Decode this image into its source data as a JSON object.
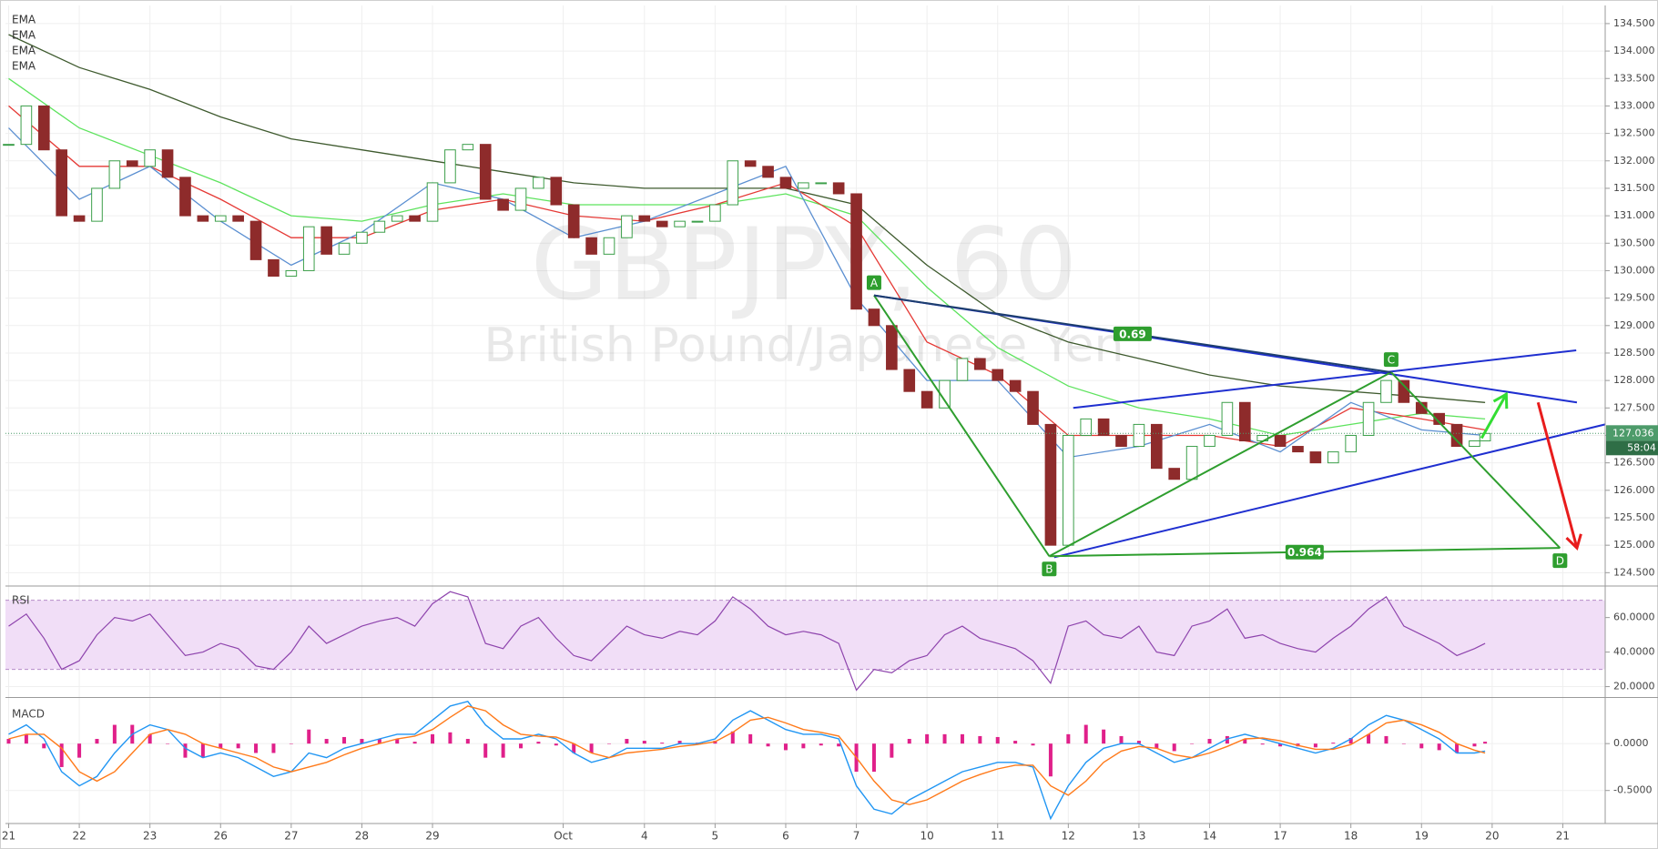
{
  "chart_data": {
    "type": "candlestick",
    "symbol_title": "GBPJPY, 60",
    "subtitle": "British Pound/Japanese Yen",
    "xlim": [
      -0.045,
      22.6
    ],
    "xticks": [
      {
        "value": 0,
        "label": "21"
      },
      {
        "value": 1,
        "label": "22"
      },
      {
        "value": 2,
        "label": "23"
      },
      {
        "value": 3,
        "label": "26"
      },
      {
        "value": 4,
        "label": "27"
      },
      {
        "value": 5,
        "label": "28"
      },
      {
        "value": 6,
        "label": "29"
      },
      {
        "value": 7.85,
        "label": "Oct"
      },
      {
        "value": 9,
        "label": "4"
      },
      {
        "value": 10,
        "label": "5"
      },
      {
        "value": 11,
        "label": "6"
      },
      {
        "value": 12,
        "label": "7"
      },
      {
        "value": 13,
        "label": "10"
      },
      {
        "value": 14,
        "label": "11"
      },
      {
        "value": 15,
        "label": "12"
      },
      {
        "value": 16,
        "label": "13"
      },
      {
        "value": 17,
        "label": "14"
      },
      {
        "value": 18,
        "label": "17"
      },
      {
        "value": 19,
        "label": "18"
      },
      {
        "value": 20,
        "label": "19"
      },
      {
        "value": 21,
        "label": "20"
      },
      {
        "value": 22,
        "label": "21"
      }
    ],
    "ylim": [
      124.29,
      134.83
    ],
    "yticks": [
      {
        "value": 124.5,
        "label": "124.500"
      },
      {
        "value": 125,
        "label": "125.000"
      },
      {
        "value": 125.5,
        "label": "125.500"
      },
      {
        "value": 126,
        "label": "126.000"
      },
      {
        "value": 126.5,
        "label": "126.500"
      },
      {
        "value": 127,
        "label": "127.000"
      },
      {
        "value": 127.5,
        "label": "127.500"
      },
      {
        "value": 128,
        "label": "128.000"
      },
      {
        "value": 128.5,
        "label": "128.500"
      },
      {
        "value": 129,
        "label": "129.000"
      },
      {
        "value": 129.5,
        "label": "129.500"
      },
      {
        "value": 130,
        "label": "130.000"
      },
      {
        "value": 130.5,
        "label": "130.500"
      },
      {
        "value": 131,
        "label": "131.000"
      },
      {
        "value": 131.5,
        "label": "131.500"
      },
      {
        "value": 132,
        "label": "132.000"
      },
      {
        "value": 132.5,
        "label": "132.500"
      },
      {
        "value": 133,
        "label": "133.000"
      },
      {
        "value": 133.5,
        "label": "133.500"
      },
      {
        "value": 134,
        "label": "134.000"
      },
      {
        "value": 134.5,
        "label": "134.500"
      }
    ],
    "grid": true,
    "up_color": "#3c9f4a",
    "down_color": "#8e2b2b",
    "x": [
      0,
      0.25,
      0.5,
      0.75,
      1,
      1.25,
      1.5,
      1.75,
      2,
      2.25,
      2.5,
      2.75,
      3,
      3.25,
      3.5,
      3.75,
      4,
      4.25,
      4.5,
      4.75,
      5,
      5.25,
      5.5,
      5.75,
      6,
      6.25,
      6.5,
      6.75,
      7,
      7.25,
      7.5,
      7.75,
      8,
      8.25,
      8.5,
      8.75,
      9,
      9.25,
      9.5,
      9.75,
      10,
      10.25,
      10.5,
      10.75,
      11,
      11.25,
      11.5,
      11.75,
      12,
      12.25,
      12.5,
      12.75,
      13,
      13.25,
      13.5,
      13.75,
      14,
      14.25,
      14.5,
      14.75,
      15,
      15.25,
      15.5,
      15.75,
      16,
      16.25,
      16.5,
      16.75,
      17,
      17.25,
      17.5,
      17.75,
      18,
      18.25,
      18.5,
      18.75,
      19,
      19.25,
      19.5,
      19.75,
      20,
      20.25,
      20.5,
      20.75,
      20.9
    ],
    "values": [
      132.3,
      133.0,
      132.2,
      131.0,
      130.9,
      131.5,
      132.0,
      131.9,
      132.2,
      131.7,
      131.0,
      130.9,
      131.0,
      130.9,
      130.2,
      129.9,
      130.0,
      130.8,
      130.3,
      130.5,
      130.7,
      130.9,
      131.0,
      130.9,
      131.6,
      132.2,
      132.3,
      131.3,
      131.1,
      131.5,
      131.7,
      131.2,
      130.6,
      130.3,
      130.6,
      131.0,
      130.9,
      130.8,
      130.9,
      130.9,
      131.2,
      132.0,
      131.9,
      131.7,
      131.5,
      131.6,
      131.6,
      131.4,
      129.3,
      129.0,
      128.2,
      127.8,
      127.5,
      128.0,
      128.4,
      128.2,
      128.0,
      127.8,
      127.2,
      125.0,
      127.0,
      127.3,
      127.0,
      126.8,
      127.2,
      126.4,
      126.2,
      126.8,
      127.0,
      127.6,
      126.9,
      127.0,
      126.8,
      126.7,
      126.5,
      126.7,
      127.0,
      127.6,
      128.0,
      127.6,
      127.4,
      127.2,
      126.8,
      126.9,
      127.036
    ],
    "price_color": "#4d9b6a",
    "countdown": "58:04",
    "ema_x": [
      0,
      1,
      2,
      3,
      4,
      5,
      6,
      7,
      8,
      9,
      10,
      11,
      12,
      13,
      14,
      15,
      16,
      17,
      18,
      19,
      20,
      20.9
    ],
    "ema": [
      {
        "name": "EMA",
        "color": "#5b8fd1",
        "values": [
          132.6,
          131.3,
          131.9,
          130.9,
          130.1,
          130.7,
          131.6,
          131.3,
          130.6,
          130.9,
          131.4,
          131.9,
          129.5,
          128.0,
          128.0,
          126.6,
          126.8,
          127.2,
          126.7,
          127.6,
          127.1,
          127.0
        ]
      },
      {
        "name": "EMA",
        "color": "#e53935",
        "values": [
          133.0,
          131.9,
          131.9,
          131.3,
          130.6,
          130.6,
          131.1,
          131.3,
          131.0,
          130.9,
          131.2,
          131.6,
          130.8,
          128.7,
          128.1,
          127.0,
          127.0,
          127.0,
          126.8,
          127.5,
          127.3,
          127.1
        ]
      },
      {
        "name": "EMA",
        "color": "#5de35d",
        "values": [
          133.5,
          132.6,
          132.1,
          131.6,
          131.0,
          130.9,
          131.2,
          131.4,
          131.2,
          131.2,
          131.2,
          131.4,
          131.0,
          129.7,
          128.6,
          127.9,
          127.5,
          127.3,
          127.0,
          127.2,
          127.4,
          127.3
        ]
      },
      {
        "name": "EMA",
        "color": "#3e5a2e",
        "values": [
          134.3,
          133.7,
          133.3,
          132.8,
          132.4,
          132.2,
          132.0,
          131.8,
          131.6,
          131.5,
          131.5,
          131.5,
          131.2,
          130.1,
          129.2,
          128.7,
          128.4,
          128.1,
          127.9,
          127.8,
          127.7,
          127.6
        ]
      }
    ],
    "pattern": {
      "color": "#2e9e2e",
      "points": [
        {
          "label": "A",
          "x": 12.25,
          "y": 129.55
        },
        {
          "label": "B",
          "x": 14.73,
          "y": 124.8
        },
        {
          "label": "C",
          "x": 19.57,
          "y": 128.15
        },
        {
          "label": "D",
          "x": 21.96,
          "y": 124.95
        }
      ],
      "ratios": [
        {
          "value": 0.69,
          "from": "A",
          "to": "C",
          "color": "#1d3e6e"
        },
        {
          "value": 0.964,
          "from": "B",
          "to": "D",
          "color": "#2e9e2e"
        }
      ]
    },
    "trend_lines": {
      "color": "#1f2fd0",
      "lines": [
        {
          "from": [
            12.25,
            129.55
          ],
          "to": [
            22.2,
            127.6
          ]
        },
        {
          "from": [
            15.07,
            127.5
          ],
          "to": [
            22.19,
            128.55
          ]
        },
        {
          "from": [
            14.8,
            124.78
          ],
          "to": [
            22.6,
            127.2
          ]
        }
      ]
    },
    "arrows": [
      {
        "color": "#33dd33",
        "from": [
          20.85,
          126.95
        ],
        "to": [
          21.2,
          127.75
        ]
      },
      {
        "color": "#e81c1c",
        "from": [
          21.65,
          127.6
        ],
        "to": [
          22.2,
          124.95
        ]
      }
    ],
    "rsi": {
      "title": "RSI",
      "color": "#8e44ad",
      "band": [
        30,
        70
      ],
      "band_color": "#f1def7",
      "ylim": [
        14.5,
        77.2
      ],
      "yticks": [
        {
          "value": 20,
          "label": "20.0000"
        },
        {
          "value": 40,
          "label": "40.0000"
        },
        {
          "value": 60,
          "label": "60.0000"
        }
      ],
      "values": [
        55,
        62,
        48,
        30,
        35,
        50,
        60,
        58,
        62,
        50,
        38,
        40,
        45,
        42,
        32,
        30,
        40,
        55,
        45,
        50,
        55,
        58,
        60,
        55,
        68,
        75,
        72,
        45,
        42,
        55,
        60,
        48,
        38,
        35,
        45,
        55,
        50,
        48,
        52,
        50,
        58,
        72,
        65,
        55,
        50,
        52,
        50,
        45,
        18,
        30,
        28,
        35,
        38,
        50,
        55,
        48,
        45,
        42,
        35,
        22,
        55,
        58,
        50,
        48,
        55,
        40,
        38,
        55,
        58,
        65,
        48,
        50,
        45,
        42,
        40,
        48,
        55,
        65,
        72,
        55,
        50,
        45,
        38,
        42,
        45
      ]
    },
    "macd": {
      "title": "MACD",
      "ylim": [
        -0.852,
        0.477
      ],
      "yticks": [
        {
          "value": 0,
          "label": "0.0000"
        },
        {
          "value": -0.5,
          "label": "-0.5000"
        }
      ],
      "macd_line": {
        "color": "#2196f3",
        "values": [
          0.1,
          0.2,
          0.05,
          -0.3,
          -0.45,
          -0.35,
          -0.1,
          0.1,
          0.2,
          0.15,
          -0.05,
          -0.15,
          -0.1,
          -0.15,
          -0.25,
          -0.35,
          -0.3,
          -0.1,
          -0.15,
          -0.05,
          0.0,
          0.05,
          0.1,
          0.1,
          0.25,
          0.4,
          0.45,
          0.2,
          0.05,
          0.05,
          0.1,
          0.05,
          -0.1,
          -0.2,
          -0.15,
          -0.05,
          -0.05,
          -0.05,
          0.0,
          0.0,
          0.05,
          0.25,
          0.35,
          0.25,
          0.15,
          0.1,
          0.1,
          0.05,
          -0.45,
          -0.7,
          -0.75,
          -0.6,
          -0.5,
          -0.4,
          -0.3,
          -0.25,
          -0.2,
          -0.2,
          -0.25,
          -0.8,
          -0.45,
          -0.2,
          -0.05,
          0.0,
          0.0,
          -0.1,
          -0.2,
          -0.15,
          -0.05,
          0.05,
          0.1,
          0.05,
          0.0,
          -0.05,
          -0.1,
          -0.05,
          0.05,
          0.2,
          0.3,
          0.25,
          0.15,
          0.05,
          -0.1,
          -0.1,
          -0.08
        ]
      },
      "signal": {
        "color": "#ff7a1a",
        "values": [
          0.05,
          0.1,
          0.1,
          -0.05,
          -0.3,
          -0.4,
          -0.3,
          -0.1,
          0.1,
          0.15,
          0.1,
          0.0,
          -0.05,
          -0.1,
          -0.15,
          -0.25,
          -0.3,
          -0.25,
          -0.2,
          -0.12,
          -0.05,
          0.0,
          0.05,
          0.08,
          0.15,
          0.28,
          0.4,
          0.35,
          0.2,
          0.1,
          0.08,
          0.07,
          0.0,
          -0.1,
          -0.15,
          -0.1,
          -0.08,
          -0.06,
          -0.03,
          -0.01,
          0.02,
          0.12,
          0.25,
          0.28,
          0.22,
          0.15,
          0.12,
          0.08,
          -0.15,
          -0.4,
          -0.6,
          -0.65,
          -0.6,
          -0.5,
          -0.4,
          -0.33,
          -0.27,
          -0.23,
          -0.23,
          -0.45,
          -0.55,
          -0.4,
          -0.2,
          -0.08,
          -0.03,
          -0.05,
          -0.12,
          -0.15,
          -0.1,
          -0.03,
          0.05,
          0.06,
          0.03,
          -0.02,
          -0.06,
          -0.06,
          -0.01,
          0.1,
          0.22,
          0.25,
          0.2,
          0.12,
          0.0,
          -0.07,
          -0.1
        ]
      },
      "histogram": {
        "color": "#e0208a",
        "values": [
          0.05,
          0.1,
          -0.05,
          -0.25,
          -0.15,
          0.05,
          0.2,
          0.2,
          0.1,
          0,
          -0.15,
          -0.15,
          -0.05,
          -0.05,
          -0.1,
          -0.1,
          0,
          0.15,
          0.05,
          0.07,
          0.05,
          0.05,
          0.05,
          0.02,
          0.1,
          0.12,
          0.05,
          -0.15,
          -0.15,
          -0.05,
          0.02,
          -0.02,
          -0.1,
          -0.1,
          0,
          0.05,
          0.03,
          0.01,
          0.03,
          0.01,
          0.03,
          0.13,
          0.1,
          -0.03,
          -0.07,
          -0.05,
          -0.02,
          -0.03,
          -0.3,
          -0.3,
          -0.15,
          0.05,
          0.1,
          0.1,
          0.1,
          0.08,
          0.07,
          0.03,
          -0.02,
          -0.35,
          0.1,
          0.2,
          0.15,
          0.08,
          0.03,
          -0.05,
          -0.08,
          0,
          0.05,
          0.08,
          0.05,
          -0.01,
          -0.03,
          -0.03,
          -0.04,
          0.01,
          0.06,
          0.1,
          0.08,
          0,
          -0.05,
          -0.07,
          -0.1,
          -0.03,
          0.02
        ]
      }
    }
  }
}
